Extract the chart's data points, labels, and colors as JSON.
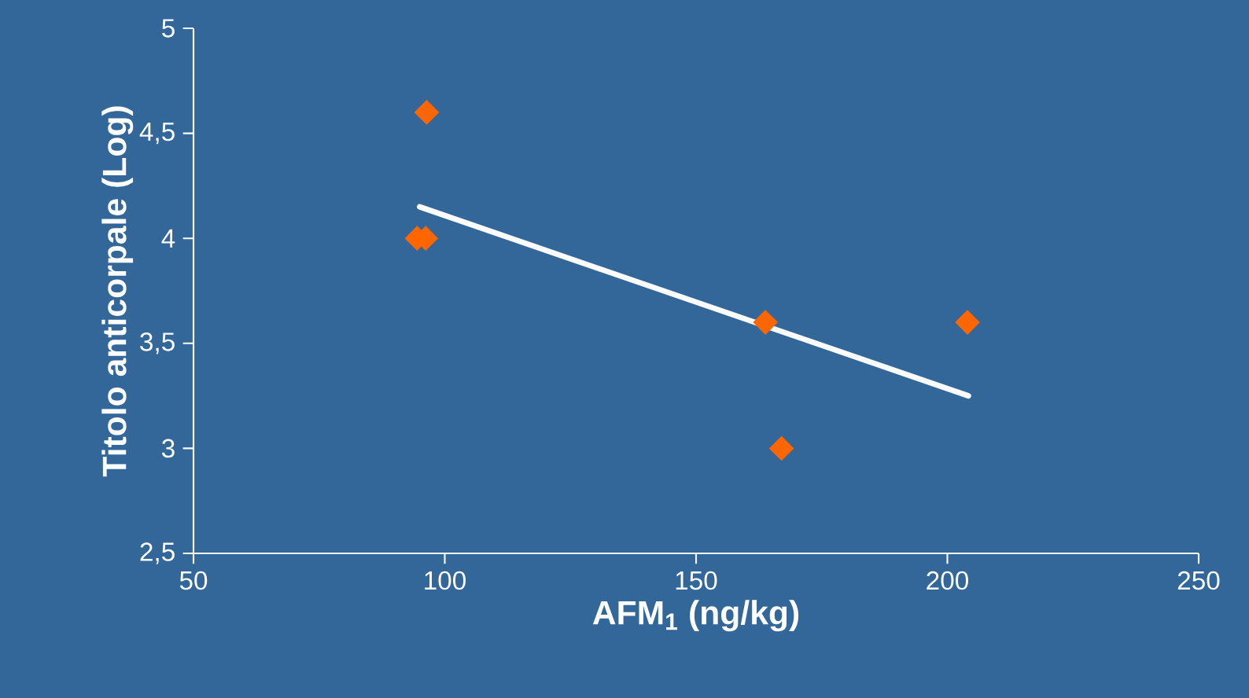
{
  "chart_data": {
    "type": "scatter",
    "xlabel": "AFM$_{1}$ (ng/kg)",
    "ylabel": "Titolo anticorpale (Log)",
    "xlim": [
      50,
      250
    ],
    "ylim": [
      2.5,
      5
    ],
    "xticks": [
      50,
      100,
      150,
      200,
      250
    ],
    "yticks": [
      {
        "value": 2.5,
        "label": "2,5"
      },
      3,
      {
        "value": 3.5,
        "label": "3,5"
      },
      4,
      {
        "value": 4.5,
        "label": "4,5"
      },
      5
    ],
    "series": [
      {
        "color": "#ff6600",
        "marker": "diamond",
        "x": [
          96.4,
          94.5,
          96.2,
          163.8,
          167,
          204
        ],
        "values": [
          4.6,
          4,
          4,
          3.6,
          3,
          3.6
        ]
      },
      {
        "type": "line",
        "color": "#ffffff",
        "x": [
          95,
          204.2
        ],
        "values": [
          4.15,
          3.25
        ]
      }
    ]
  }
}
